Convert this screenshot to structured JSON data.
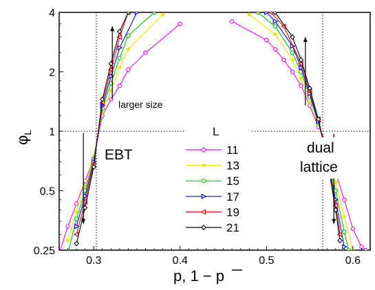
{
  "chart_data": {
    "type": "line",
    "xlabel": "p, 1 − p",
    "ylabel": "φ_L",
    "ylabel_main": "φ",
    "ylabel_sub": "L",
    "xlim": [
      0.26,
      0.62
    ],
    "ylim": [
      0.25,
      4
    ],
    "y_scale": "log2",
    "grid": false,
    "xticks": [
      0.3,
      0.4,
      0.5,
      0.6
    ],
    "xtick_labels": [
      "0.3",
      "0.4",
      "0.5",
      "0.6"
    ],
    "yticks": [
      0.25,
      0.5,
      1,
      2,
      4
    ],
    "ytick_labels": [
      "0.25",
      "0.5",
      "1",
      "2",
      "4"
    ],
    "crossing_left_x": 0.303,
    "crossing_right_x": 0.565,
    "crossing_y": 1,
    "annotations": {
      "ebt": "EBT",
      "dual_line1": "dual",
      "dual_line2": "lattice",
      "larger_size": "larger size"
    },
    "legend_title": "L",
    "legend_position": "center",
    "series": [
      {
        "name": "11",
        "color": "#ff00ff",
        "marker": "circle",
        "left": {
          "x": [
            0.26,
            0.27,
            0.28,
            0.29,
            0.3,
            0.31,
            0.32,
            0.33,
            0.34,
            0.36,
            0.4
          ],
          "y": [
            0.24,
            0.33,
            0.43,
            0.56,
            0.73,
            1.2,
            1.45,
            1.7,
            2.05,
            2.5,
            3.5
          ]
        },
        "right": {
          "x": [
            0.46,
            0.5,
            0.51,
            0.52,
            0.53,
            0.54,
            0.55,
            0.56,
            0.57,
            0.58,
            0.59,
            0.6,
            0.61,
            0.615
          ],
          "y": [
            3.6,
            2.9,
            2.6,
            2.3,
            2.0,
            1.7,
            1.35,
            1.05,
            0.87,
            0.62,
            0.45,
            0.32,
            0.26,
            0.25
          ]
        }
      },
      {
        "name": "13",
        "color": "#e6e600",
        "marker": "star",
        "left": {
          "x": [
            0.27,
            0.28,
            0.29,
            0.3,
            0.31,
            0.32,
            0.33,
            0.34,
            0.38
          ],
          "y": [
            0.28,
            0.39,
            0.53,
            0.74,
            1.25,
            1.6,
            2.1,
            2.6,
            3.9
          ]
        },
        "right": {
          "x": [
            0.48,
            0.51,
            0.53,
            0.54,
            0.55,
            0.56,
            0.57,
            0.58,
            0.59,
            0.6
          ],
          "y": [
            3.9,
            3.1,
            2.3,
            1.85,
            1.4,
            1.08,
            0.8,
            0.55,
            0.37,
            0.25
          ]
        }
      },
      {
        "name": "15",
        "color": "#00c000",
        "marker": "circle",
        "left": {
          "x": [
            0.27,
            0.28,
            0.29,
            0.3,
            0.31,
            0.32,
            0.33,
            0.34,
            0.37
          ],
          "y": [
            0.24,
            0.36,
            0.5,
            0.72,
            1.3,
            1.75,
            2.35,
            3.05,
            4.0
          ]
        },
        "right": {
          "x": [
            0.49,
            0.51,
            0.53,
            0.54,
            0.55,
            0.56,
            0.57,
            0.58,
            0.59,
            0.595
          ],
          "y": [
            4.0,
            3.4,
            2.5,
            2.0,
            1.5,
            1.1,
            0.78,
            0.5,
            0.31,
            0.25
          ]
        }
      },
      {
        "name": "17",
        "color": "#0000ff",
        "marker": "triangle-right",
        "left": {
          "x": [
            0.28,
            0.29,
            0.3,
            0.31,
            0.32,
            0.33,
            0.35
          ],
          "y": [
            0.33,
            0.47,
            0.7,
            1.35,
            1.9,
            2.65,
            4.0
          ]
        },
        "right": {
          "x": [
            0.5,
            0.51,
            0.53,
            0.54,
            0.55,
            0.56,
            0.57,
            0.58,
            0.59
          ],
          "y": [
            4.0,
            3.6,
            2.7,
            2.1,
            1.55,
            1.12,
            0.76,
            0.45,
            0.26
          ]
        }
      },
      {
        "name": "19",
        "color": "#ff0000",
        "marker": "triangle-left",
        "left": {
          "x": [
            0.28,
            0.29,
            0.3,
            0.31,
            0.32,
            0.33,
            0.34
          ],
          "y": [
            0.3,
            0.44,
            0.68,
            1.4,
            2.05,
            3.0,
            4.0
          ]
        },
        "right": {
          "x": [
            0.505,
            0.52,
            0.54,
            0.55,
            0.56,
            0.57,
            0.58,
            0.585
          ],
          "y": [
            4.0,
            3.4,
            2.2,
            1.6,
            1.15,
            0.74,
            0.42,
            0.3
          ]
        }
      },
      {
        "name": "21",
        "color": "#000000",
        "marker": "diamond",
        "left": {
          "x": [
            0.28,
            0.29,
            0.3,
            0.31,
            0.32,
            0.33,
            0.34
          ],
          "y": [
            0.27,
            0.41,
            0.66,
            1.45,
            2.2,
            3.2,
            4.0
          ]
        },
        "right": {
          "x": [
            0.51,
            0.53,
            0.54,
            0.55,
            0.56,
            0.57,
            0.58,
            0.585
          ],
          "y": [
            4.0,
            3.0,
            2.3,
            1.65,
            1.15,
            0.73,
            0.4,
            0.28
          ]
        }
      }
    ]
  }
}
